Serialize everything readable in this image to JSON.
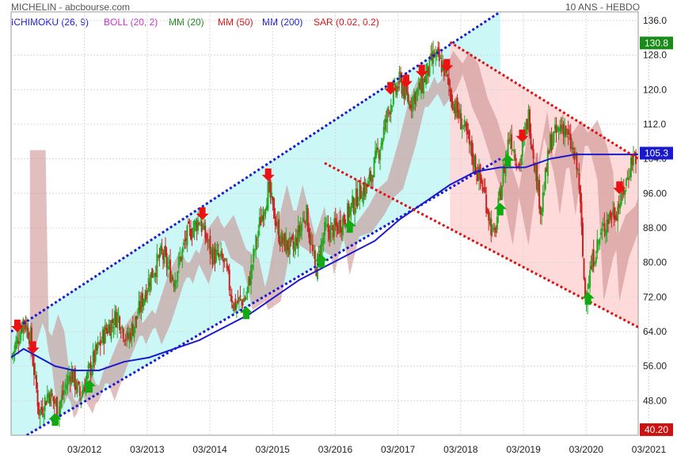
{
  "header": {
    "title": "MICHELIN - abcbourse.com",
    "period": "10 ANS - HEBDO"
  },
  "indicators": [
    {
      "label": "ICHIMOKU (26, 9)",
      "color": "#1a1acc"
    },
    {
      "label": "BOLL (20, 2)",
      "color": "#cc33cc"
    },
    {
      "label": "MM (20)",
      "color": "#1a8a1a"
    },
    {
      "label": "MM (50)",
      "color": "#dd1111"
    },
    {
      "label": "MM (200)",
      "color": "#1a1acc"
    },
    {
      "label": "SAR (0.02, 0.2)",
      "color": "#dd1111"
    }
  ],
  "badges": {
    "last": "105.3",
    "high": "130.8",
    "low": "40.20"
  },
  "colors": {
    "up_candle": "#22aa22",
    "down_candle": "#cc2222",
    "uptrend_fill": "#ccf7f7",
    "downtrend_fill": "#ffd6d6",
    "mm200": "#1a1acc",
    "cloud": "#c88a8a",
    "arrow_up": "#11aa11",
    "arrow_down": "#ee1111"
  },
  "chart_data": {
    "type": "candlestick",
    "ylim": [
      40,
      138
    ],
    "yticks": [
      "136.0",
      "128.0",
      "120.0",
      "112.0",
      "104.0",
      "96.00",
      "88.00",
      "80.00",
      "72.00",
      "64.00",
      "56.00",
      "48.00"
    ],
    "ytick_values": [
      136,
      128,
      120,
      112,
      104,
      96,
      88,
      80,
      72,
      64,
      56,
      48
    ],
    "xticks": [
      "03/2012",
      "03/2013",
      "03/2014",
      "03/2015",
      "03/2016",
      "03/2017",
      "03/2018",
      "03/2019",
      "03/2020",
      "03/2021"
    ],
    "xtick_values": [
      2012.17,
      2013.17,
      2014.17,
      2015.17,
      2016.17,
      2017.17,
      2018.17,
      2019.17,
      2020.17,
      2021.17
    ],
    "xlim": [
      2011.0,
      2021.0
    ],
    "price_path": [
      [
        2011.0,
        58
      ],
      [
        2011.1,
        62
      ],
      [
        2011.2,
        67
      ],
      [
        2011.3,
        63
      ],
      [
        2011.45,
        45
      ],
      [
        2011.6,
        50
      ],
      [
        2011.75,
        46
      ],
      [
        2011.95,
        55
      ],
      [
        2012.1,
        49
      ],
      [
        2012.3,
        57
      ],
      [
        2012.5,
        64
      ],
      [
        2012.7,
        68
      ],
      [
        2012.85,
        62
      ],
      [
        2013.0,
        67
      ],
      [
        2013.2,
        76
      ],
      [
        2013.4,
        82
      ],
      [
        2013.6,
        76
      ],
      [
        2013.8,
        86
      ],
      [
        2014.0,
        90
      ],
      [
        2014.2,
        82
      ],
      [
        2014.4,
        80
      ],
      [
        2014.55,
        70
      ],
      [
        2014.75,
        72
      ],
      [
        2014.95,
        88
      ],
      [
        2015.1,
        97
      ],
      [
        2015.3,
        85
      ],
      [
        2015.5,
        83
      ],
      [
        2015.7,
        92
      ],
      [
        2015.85,
        78
      ],
      [
        2016.0,
        87
      ],
      [
        2016.2,
        88
      ],
      [
        2016.4,
        92
      ],
      [
        2016.55,
        96
      ],
      [
        2016.7,
        98
      ],
      [
        2016.9,
        108
      ],
      [
        2017.05,
        117
      ],
      [
        2017.2,
        122
      ],
      [
        2017.35,
        117
      ],
      [
        2017.55,
        121
      ],
      [
        2017.75,
        128
      ],
      [
        2017.9,
        125
      ],
      [
        2018.05,
        117
      ],
      [
        2018.2,
        112
      ],
      [
        2018.35,
        105
      ],
      [
        2018.55,
        96
      ],
      [
        2018.7,
        85
      ],
      [
        2018.8,
        96
      ],
      [
        2018.95,
        110
      ],
      [
        2019.1,
        102
      ],
      [
        2019.25,
        114
      ],
      [
        2019.45,
        92
      ],
      [
        2019.6,
        108
      ],
      [
        2019.8,
        112
      ],
      [
        2019.95,
        106
      ],
      [
        2020.05,
        100
      ],
      [
        2020.15,
        72
      ],
      [
        2020.3,
        82
      ],
      [
        2020.5,
        90
      ],
      [
        2020.65,
        92
      ],
      [
        2020.8,
        98
      ],
      [
        2020.9,
        104
      ],
      [
        2021.0,
        105
      ]
    ],
    "mm200": [
      [
        2011.0,
        58
      ],
      [
        2011.2,
        60
      ],
      [
        2011.45,
        58
      ],
      [
        2011.7,
        56
      ],
      [
        2012.0,
        55
      ],
      [
        2012.4,
        55
      ],
      [
        2012.8,
        57
      ],
      [
        2013.2,
        58
      ],
      [
        2013.6,
        60
      ],
      [
        2014.0,
        62
      ],
      [
        2014.4,
        65
      ],
      [
        2014.8,
        68
      ],
      [
        2015.2,
        72
      ],
      [
        2015.6,
        76
      ],
      [
        2016.0,
        79
      ],
      [
        2016.4,
        82
      ],
      [
        2016.8,
        85
      ],
      [
        2017.2,
        90
      ],
      [
        2017.6,
        94
      ],
      [
        2018.0,
        98
      ],
      [
        2018.4,
        101
      ],
      [
        2018.8,
        102
      ],
      [
        2019.2,
        102
      ],
      [
        2019.6,
        104
      ],
      [
        2020.0,
        105
      ],
      [
        2020.4,
        105
      ],
      [
        2020.8,
        105
      ],
      [
        2021.0,
        105
      ]
    ],
    "uptrend_channel": {
      "upper": [
        [
          2011.0,
          64
        ],
        [
          2018.8,
          138
        ]
      ],
      "lower": [
        [
          2011.25,
          40
        ],
        [
          2018.8,
          104
        ]
      ]
    },
    "downtrend_channel": {
      "upper": [
        [
          2018.0,
          131
        ],
        [
          2021.0,
          104
        ]
      ],
      "lower": [
        [
          2016.0,
          103
        ],
        [
          2021.0,
          65
        ]
      ]
    },
    "buy_signals": [
      2011.7,
      2012.25,
      2014.75,
      2015.95,
      2016.4,
      2018.8,
      2018.92,
      2020.2
    ],
    "sell_signals": [
      2011.1,
      2011.35,
      2014.05,
      2015.1,
      2017.05,
      2017.3,
      2017.55,
      2017.95,
      2019.15,
      2020.7
    ]
  }
}
